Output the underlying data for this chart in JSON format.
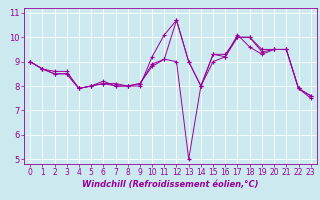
{
  "title": "",
  "xlabel": "Windchill (Refroidissement éolien,°C)",
  "ylabel": "",
  "background_color": "#cce9f0",
  "line_color": "#990099",
  "xlim": [
    -0.5,
    23.5
  ],
  "ylim": [
    4.8,
    11.2
  ],
  "yticks": [
    5,
    6,
    7,
    8,
    9,
    10,
    11
  ],
  "xticks": [
    0,
    1,
    2,
    3,
    4,
    5,
    6,
    7,
    8,
    9,
    10,
    11,
    12,
    13,
    14,
    15,
    16,
    17,
    18,
    19,
    20,
    21,
    22,
    23
  ],
  "series": [
    [
      9.0,
      8.7,
      8.6,
      8.6,
      7.9,
      8.0,
      8.1,
      8.1,
      8.0,
      8.0,
      9.2,
      10.1,
      10.7,
      9.0,
      8.0,
      9.3,
      9.3,
      10.0,
      10.0,
      9.5,
      9.5,
      9.5,
      7.9,
      7.6
    ],
    [
      9.0,
      8.7,
      8.5,
      8.5,
      7.9,
      8.0,
      8.2,
      8.0,
      8.0,
      8.1,
      8.9,
      9.1,
      9.0,
      5.0,
      8.0,
      9.0,
      9.2,
      10.1,
      9.6,
      9.3,
      9.5,
      9.5,
      7.9,
      7.5
    ],
    [
      9.0,
      8.7,
      8.5,
      8.5,
      7.9,
      8.0,
      8.1,
      8.0,
      8.0,
      8.1,
      8.8,
      9.1,
      10.7,
      9.0,
      8.0,
      9.3,
      9.2,
      10.0,
      10.0,
      9.4,
      9.5,
      9.5,
      7.9,
      7.6
    ]
  ],
  "xlabel_fontsize": 6,
  "tick_fontsize": 5.5,
  "linewidth": 0.7,
  "markersize": 2.5
}
